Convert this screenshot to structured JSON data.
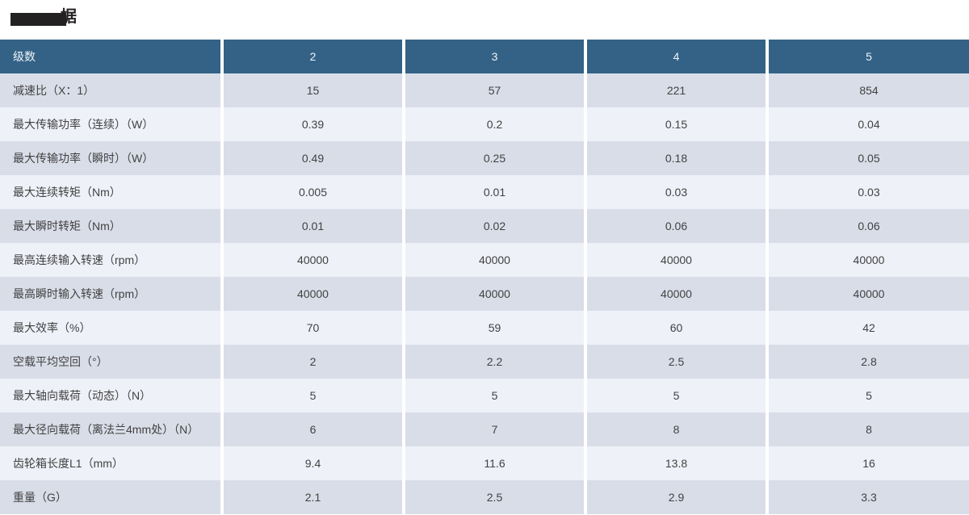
{
  "title": {
    "redacted_fragment": "据"
  },
  "colors": {
    "header_bg": "#336286",
    "header_text": "#f0f4f7",
    "row_dark": "#d9dde8",
    "row_light": "#eef1f8",
    "text": "#424242",
    "title_black": "#242122",
    "page_bg": "#ffffff"
  },
  "table": {
    "header": {
      "label": "级数",
      "columns": [
        "2",
        "3",
        "4",
        "5"
      ]
    },
    "rows": [
      {
        "label": "减速比（X：1）",
        "values": [
          "15",
          "57",
          "221",
          "854"
        ]
      },
      {
        "label": "最大传输功率（连续）（W）",
        "values": [
          "0.39",
          "0.2",
          "0.15",
          "0.04"
        ]
      },
      {
        "label": "最大传输功率（瞬时）（W）",
        "values": [
          "0.49",
          "0.25",
          "0.18",
          "0.05"
        ]
      },
      {
        "label": "最大连续转矩（Nm）",
        "values": [
          "0.005",
          "0.01",
          "0.03",
          "0.03"
        ]
      },
      {
        "label": "最大瞬时转矩（Nm）",
        "values": [
          "0.01",
          "0.02",
          "0.06",
          "0.06"
        ]
      },
      {
        "label": "最高连续输入转速（rpm）",
        "values": [
          "40000",
          "40000",
          "40000",
          "40000"
        ]
      },
      {
        "label": "最高瞬时输入转速（rpm）",
        "values": [
          "40000",
          "40000",
          "40000",
          "40000"
        ]
      },
      {
        "label": "最大效率（%）",
        "values": [
          "70",
          "59",
          "60",
          "42"
        ]
      },
      {
        "label": "空载平均空回（°）",
        "values": [
          "2",
          "2.2",
          "2.5",
          "2.8"
        ]
      },
      {
        "label": "最大轴向载荷（动态）（N）",
        "values": [
          "5",
          "5",
          "5",
          "5"
        ]
      },
      {
        "label": "最大径向载荷（离法兰4mm处）（N）",
        "values": [
          "6",
          "7",
          "8",
          "8"
        ]
      },
      {
        "label": "齿轮箱长度L1（mm）",
        "values": [
          "9.4",
          "11.6",
          "13.8",
          "16"
        ]
      },
      {
        "label": "重量（G）",
        "values": [
          "2.1",
          "2.5",
          "2.9",
          "3.3"
        ]
      }
    ]
  }
}
